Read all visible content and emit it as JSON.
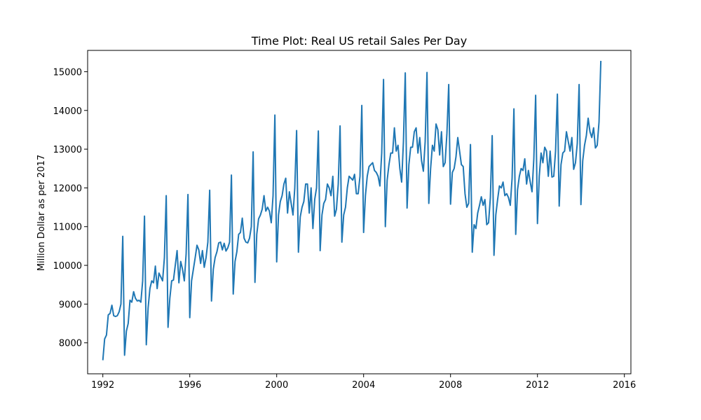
{
  "chart_data": {
    "type": "line",
    "title": "Time Plot: Real US retail Sales Per Day",
    "xlabel": "",
    "ylabel": "Million Dollar as per 2017",
    "xlim": [
      1991.3,
      2016.3
    ],
    "ylim": [
      7200,
      15550
    ],
    "grid": false,
    "color": "#1f77b4",
    "x_ticks": [
      1992,
      1996,
      2000,
      2004,
      2008,
      2012,
      2016
    ],
    "x_tick_labels": [
      "1992",
      "1996",
      "2000",
      "2004",
      "2008",
      "2012",
      "2016"
    ],
    "y_ticks": [
      8000,
      9000,
      10000,
      11000,
      12000,
      13000,
      14000,
      15000
    ],
    "y_tick_labels": [
      "8000",
      "9000",
      "10000",
      "11000",
      "12000",
      "13000",
      "14000",
      "15000"
    ],
    "series": [
      {
        "x_start": "1992-01",
        "frequency": "monthly",
        "values": [
          7550,
          8100,
          8200,
          8720,
          8760,
          8970,
          8700,
          8680,
          8700,
          8800,
          9000,
          10750,
          7680,
          8300,
          8500,
          9100,
          9050,
          9320,
          9150,
          9080,
          9100,
          9050,
          9600,
          11270,
          7950,
          8900,
          9400,
          9600,
          9550,
          9980,
          9400,
          9800,
          9700,
          9600,
          10200,
          11800,
          8400,
          9150,
          9600,
          9620,
          10000,
          10380,
          9550,
          10100,
          9900,
          9600,
          10300,
          11830,
          8650,
          9600,
          9900,
          10200,
          10520,
          10400,
          10050,
          10380,
          9950,
          10200,
          10600,
          11940,
          9080,
          9900,
          10200,
          10350,
          10580,
          10600,
          10400,
          10570,
          10370,
          10450,
          10600,
          12330,
          9260,
          10100,
          10350,
          10800,
          10850,
          11220,
          10700,
          10600,
          10580,
          10700,
          11000,
          12930,
          9560,
          10800,
          11200,
          11300,
          11450,
          11800,
          11400,
          11500,
          11400,
          11100,
          11800,
          13880,
          10090,
          11300,
          11650,
          11800,
          12100,
          12250,
          11350,
          11900,
          11600,
          11300,
          12000,
          13480,
          10340,
          11250,
          11500,
          11650,
          12100,
          12100,
          11350,
          12000,
          10950,
          11700,
          12000,
          13470,
          10380,
          11300,
          11600,
          11700,
          12100,
          12000,
          11800,
          12300,
          11270,
          11450,
          12100,
          13600,
          10600,
          11300,
          11500,
          12000,
          12300,
          12250,
          12200,
          12350,
          11850,
          11850,
          12300,
          14130,
          10850,
          11800,
          12300,
          12550,
          12600,
          12650,
          12450,
          12400,
          12300,
          12050,
          12900,
          14800,
          11000,
          12200,
          12600,
          12900,
          12900,
          13550,
          12950,
          13100,
          12500,
          12150,
          13200,
          14970,
          11480,
          12600,
          13050,
          13050,
          13450,
          13550,
          12900,
          13300,
          12700,
          12430,
          13200,
          14980,
          11600,
          12500,
          13100,
          12950,
          13650,
          13500,
          12850,
          13450,
          12550,
          12650,
          13400,
          14670,
          11580,
          12400,
          12500,
          12800,
          13300,
          12950,
          12600,
          12550,
          11850,
          11500,
          11600,
          13120,
          10340,
          11050,
          10950,
          11350,
          11550,
          11770,
          11550,
          11700,
          11050,
          11100,
          11750,
          13350,
          10260,
          11300,
          11700,
          12050,
          12000,
          12150,
          11800,
          11850,
          11750,
          11550,
          12250,
          14040,
          10800,
          11950,
          12300,
          12500,
          12450,
          12750,
          12100,
          12450,
          12150,
          11900,
          12750,
          14390,
          11080,
          12300,
          12900,
          12650,
          13050,
          12950,
          12300,
          12950,
          12280,
          12300,
          12950,
          14420,
          11530,
          12600,
          12900,
          12950,
          13450,
          13200,
          12950,
          13300,
          12480,
          12650,
          13150,
          14670,
          11570,
          12700,
          13100,
          13350,
          13800,
          13450,
          13300,
          13550,
          13030,
          13100,
          13700,
          15280
        ]
      }
    ]
  }
}
